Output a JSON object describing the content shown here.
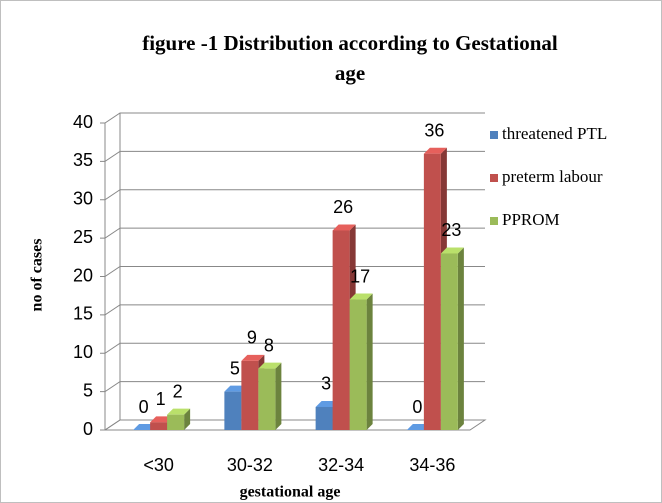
{
  "chart_data": {
    "type": "bar3d",
    "title": "figure -1 Distribution according to Gestational age",
    "xlabel": "gestational age",
    "ylabel": "no of cases",
    "categories": [
      "<30",
      "30-32",
      "32-34",
      "34-36"
    ],
    "series": [
      {
        "name": "threatened PTL",
        "color": "#4f81bd",
        "values": [
          0,
          5,
          3,
          0
        ]
      },
      {
        "name": "preterm labour",
        "color": "#c0504d",
        "values": [
          1,
          9,
          26,
          36
        ]
      },
      {
        "name": "PPROM",
        "color": "#9bbb59",
        "values": [
          2,
          8,
          17,
          23
        ]
      }
    ],
    "ylim": [
      0,
      40
    ],
    "yticks": [
      0,
      5,
      10,
      15,
      20,
      25,
      30,
      35,
      40
    ],
    "grid": true,
    "legend": "right"
  }
}
